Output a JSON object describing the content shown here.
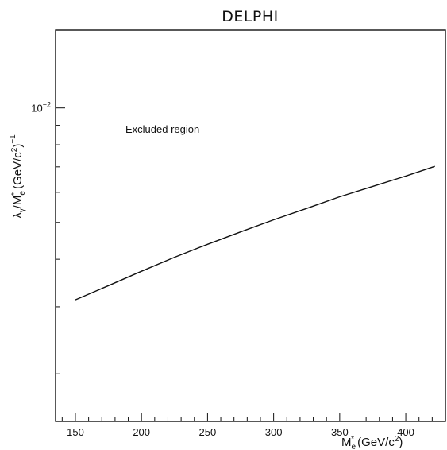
{
  "chart_data": {
    "type": "line",
    "title": "DELPHI",
    "xlabel": {
      "main": "M",
      "sub": "e",
      "sup": "*",
      "unit_open": " (GeV/c",
      "unit_sup": "2",
      "unit_close": ")"
    },
    "ylabel": {
      "main": "λ",
      "sub1": "γ",
      "mid": "/M",
      "sub2": "e",
      "sup2": "*",
      "unit_open": " (GeV/c",
      "unit_sup": "2",
      "unit_close": ")",
      "exp": "−1"
    },
    "xlim": [
      135,
      430
    ],
    "ylim": [
      0.0015,
      0.016
    ],
    "y_scale": "log",
    "x_ticks": [
      150,
      200,
      250,
      300,
      350,
      400
    ],
    "y_major_tick": {
      "base": "10",
      "exp": "−2",
      "value": 0.01
    },
    "annotation": "Excluded region",
    "series": [
      {
        "x": [
          150,
          175,
          200,
          225,
          250,
          275,
          300,
          325,
          350,
          375,
          400,
          422
        ],
        "y": [
          0.00313,
          0.00341,
          0.00372,
          0.00405,
          0.00438,
          0.00472,
          0.00508,
          0.00544,
          0.00584,
          0.00622,
          0.00662,
          0.00702
        ]
      }
    ],
    "grid": false
  }
}
